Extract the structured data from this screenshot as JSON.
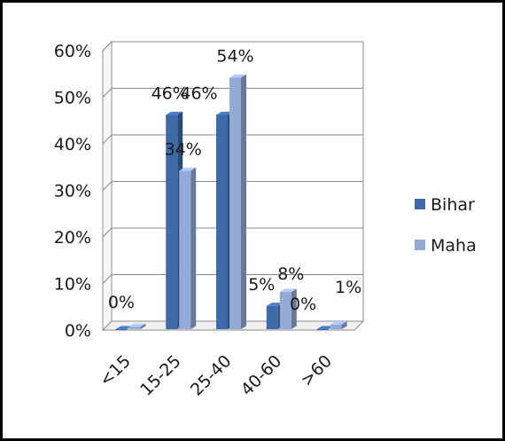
{
  "chart_data": {
    "type": "bar",
    "categories": [
      "<15",
      "15-25",
      "25-40",
      "40-60",
      ">60"
    ],
    "series": [
      {
        "name": "Bihar",
        "values": [
          0,
          46,
          46,
          5,
          0
        ],
        "labels": [
          "0%",
          "46%",
          "46%",
          "5%",
          "0%"
        ],
        "color": "#3f6aa8"
      },
      {
        "name": "Maha",
        "values": [
          0.5,
          34,
          54,
          8,
          1
        ],
        "labels": [
          "",
          "34%",
          "54%",
          "8%",
          "1%"
        ],
        "color": "#94abd6"
      }
    ],
    "y_ticks": [
      "0%",
      "10%",
      "20%",
      "30%",
      "40%",
      "50%",
      "60%"
    ],
    "ylim": [
      0,
      60
    ],
    "grid": true,
    "legend": "right",
    "style": "3d-clustered-column"
  }
}
